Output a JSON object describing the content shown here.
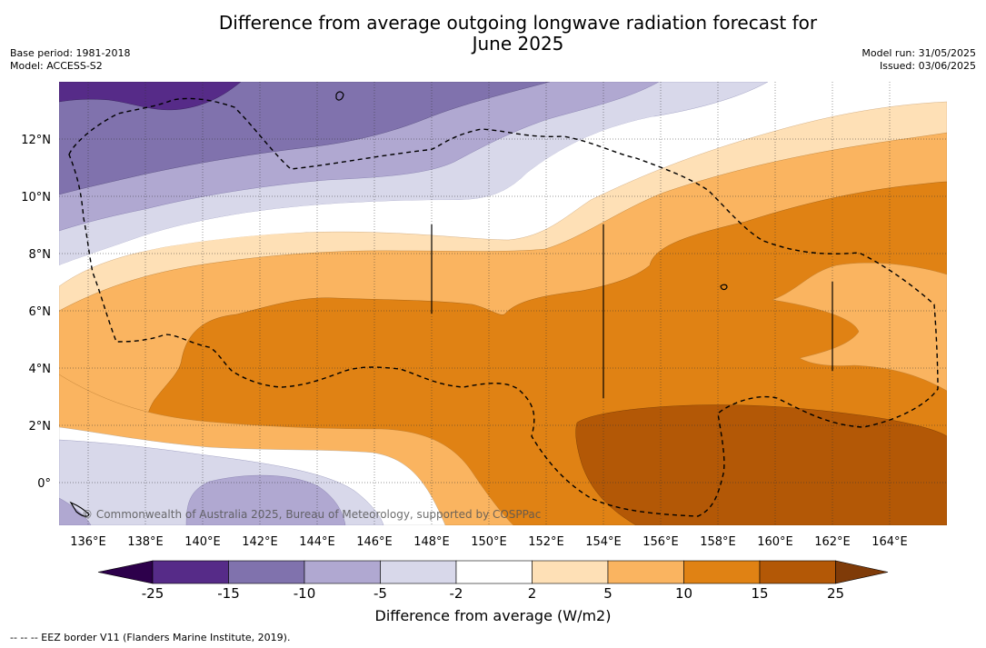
{
  "header": {
    "title_line1": "Difference from average outgoing longwave radiation forecast for",
    "title_line2": "June 2025",
    "base_period": "Base period: 1981-2018",
    "model": "Model: ACCESS-S2",
    "model_run": "Model run: 31/05/2025",
    "issued": "Issued: 03/06/2025"
  },
  "map": {
    "lon_ticks": [
      "136°E",
      "138°E",
      "140°E",
      "142°E",
      "144°E",
      "146°E",
      "148°E",
      "150°E",
      "152°E",
      "154°E",
      "156°E",
      "158°E",
      "160°E",
      "162°E",
      "164°E"
    ],
    "lat_ticks": [
      "12°N",
      "10°N",
      "8°N",
      "6°N",
      "4°N",
      "2°N",
      "0°"
    ],
    "copyright": "© Commonwealth of Australia 2025, Bureau of Meteorology, supported by COSPPac",
    "gridlines": true
  },
  "colorbar": {
    "title": "Difference from average (W/m2)",
    "ticks": [
      "-25",
      "-15",
      "-10",
      "-5",
      "-2",
      "2",
      "5",
      "10",
      "15",
      "25"
    ],
    "colors": [
      "#562b88",
      "#8072ad",
      "#b0a8d1",
      "#d8d8ea",
      "#ffffff",
      "#fee0b6",
      "#fab460",
      "#e08214",
      "#b35806"
    ],
    "under_color": "#2d004b",
    "over_color": "#7f3b08"
  },
  "footer": {
    "legend": "--  --  -- EEZ border V11 (Flanders Marine Institute, 2019)."
  }
}
